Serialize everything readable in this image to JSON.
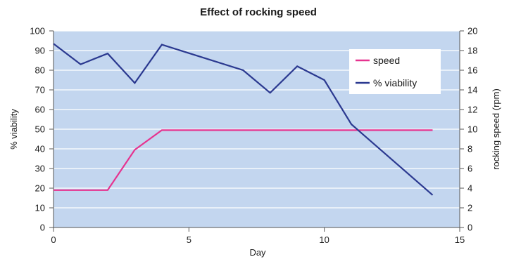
{
  "chart_data": {
    "type": "line",
    "title": "Effect of rocking speed",
    "xlabel": "Day",
    "ylabel": "% viability",
    "y2label": "rocking speed (rpm)",
    "xlim": [
      0,
      15
    ],
    "ylim": [
      0,
      100
    ],
    "y2lim": [
      0,
      20
    ],
    "x_ticks": [
      0,
      5,
      10,
      15
    ],
    "y_ticks": [
      0,
      10,
      20,
      30,
      40,
      50,
      60,
      70,
      80,
      90,
      100
    ],
    "y2_ticks": [
      0,
      2,
      4,
      6,
      8,
      10,
      12,
      14,
      16,
      18,
      20
    ],
    "grid": true,
    "legend_position": "top-right",
    "series": [
      {
        "name": "speed",
        "axis": "right",
        "color": "#e6338f",
        "x": [
          0,
          2,
          3,
          4,
          14
        ],
        "y": [
          3.8,
          3.8,
          7.9,
          9.9,
          9.9
        ]
      },
      {
        "name": "% viability",
        "axis": "left",
        "color": "#2b3990",
        "x": [
          0,
          1,
          2,
          3,
          4,
          7,
          8,
          9,
          10,
          11,
          14
        ],
        "y": [
          93.5,
          83,
          88.5,
          73.5,
          93,
          80,
          68.5,
          82,
          75,
          52.5,
          16.5
        ]
      }
    ],
    "colors": {
      "plot_background": "#c3d6ef",
      "gridline": "#ffffff",
      "axis": "#555555"
    }
  }
}
